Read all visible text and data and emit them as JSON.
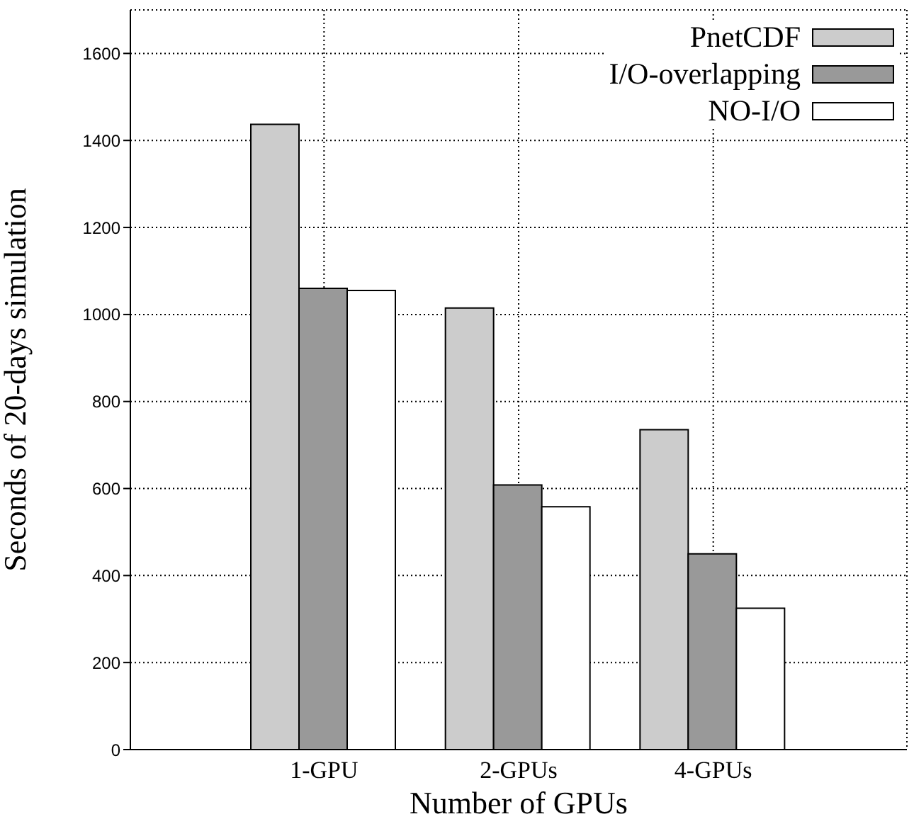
{
  "chart_data": {
    "type": "bar",
    "xlabel": "Number of GPUs",
    "ylabel": "Seconds of 20-days simulation",
    "categories": [
      "1-GPU",
      "2-GPUs",
      "4-GPUs"
    ],
    "series": [
      {
        "name": "PnetCDF",
        "color": "#cccccc",
        "values": [
          1437,
          1015,
          735
        ]
      },
      {
        "name": "I/O-overlapping",
        "color": "#999999",
        "values": [
          1060,
          608,
          450
        ]
      },
      {
        "name": "NO-I/O",
        "color": "#ffffff",
        "values": [
          1055,
          558,
          325
        ]
      }
    ],
    "ylim": [
      0,
      1700
    ],
    "yticks": [
      0,
      200,
      400,
      600,
      800,
      1000,
      1200,
      1400,
      1600
    ],
    "grid": true,
    "legend": "top right"
  }
}
